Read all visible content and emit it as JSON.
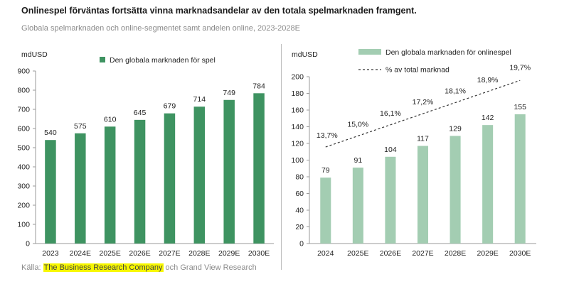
{
  "title": "Onlinespel förväntas fortsätta vinna marknadsandelar av den totala spelmarknaden framgent.",
  "subtitle": "Globala spelmarknaden och online-segmentet samt andelen online, 2023-2028E",
  "source": {
    "prefix": "Källa: ",
    "highlight": "The Business Research Company",
    "suffix": " och Grand View Research"
  },
  "colors": {
    "left_bar": "#3e9361",
    "right_bar": "#a3cdb2",
    "axis": "#999999",
    "text": "#222222"
  },
  "chart_data": [
    {
      "type": "bar",
      "title": "",
      "ylabel": "mdUSD",
      "xlabel": "",
      "ylim": [
        0,
        900
      ],
      "yticks": [
        0,
        100,
        200,
        300,
        400,
        500,
        600,
        700,
        800,
        900
      ],
      "categories": [
        "2023",
        "2024E",
        "2025E",
        "2026E",
        "2027E",
        "2028E",
        "2029E",
        "2030E"
      ],
      "series": [
        {
          "name": "Den globala marknaden för spel",
          "values": [
            540,
            575,
            610,
            645,
            679,
            714,
            749,
            784
          ]
        }
      ],
      "legend": "top-center",
      "grid": false
    },
    {
      "type": "bar",
      "title": "",
      "ylabel": "mdUSD",
      "xlabel": "",
      "ylim": [
        0,
        200
      ],
      "yticks": [
        0,
        20,
        40,
        60,
        80,
        100,
        120,
        140,
        160,
        180,
        200
      ],
      "categories": [
        "2024",
        "2025E",
        "2026E",
        "2027E",
        "2028E",
        "2029E",
        "2030E"
      ],
      "series": [
        {
          "name": "Den globala marknaden för onlinespel",
          "values": [
            79,
            91,
            104,
            117,
            129,
            142,
            155
          ]
        },
        {
          "name": "% av total marknad",
          "type": "line",
          "style": "dashed",
          "values": [
            13.7,
            15.0,
            16.1,
            17.2,
            18.1,
            18.9,
            19.7
          ],
          "labels": [
            "13,7%",
            "15,0%",
            "16,1%",
            "17,2%",
            "18,1%",
            "18,9%",
            "19,7%"
          ]
        }
      ],
      "legend": "top-center",
      "grid": false
    }
  ]
}
